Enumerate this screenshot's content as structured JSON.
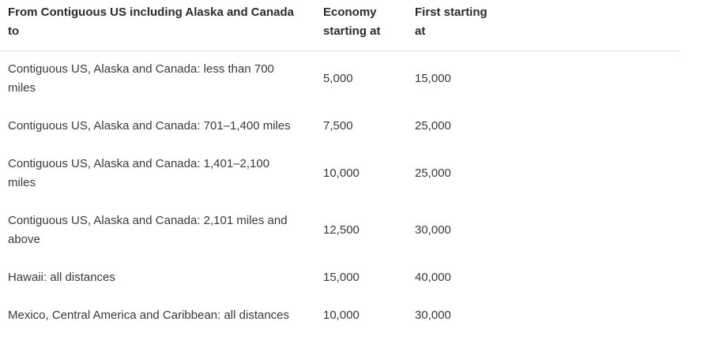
{
  "table": {
    "headers": [
      "From Contiguous US including Alaska and Canada to",
      "Economy starting at",
      "First starting at"
    ],
    "rows": [
      [
        "Contiguous US, Alaska and Canada: less than 700 miles",
        "5,000",
        "15,000"
      ],
      [
        "Contiguous US, Alaska and Canada: 701–1,400 miles",
        "7,500",
        "25,000"
      ],
      [
        "Contiguous US, Alaska and Canada: 1,401–2,100 miles",
        "10,000",
        "25,000"
      ],
      [
        "Contiguous US, Alaska and Canada: 2,101 miles and above",
        "12,500",
        "30,000"
      ],
      [
        "Hawaii: all distances",
        "15,000",
        "40,000"
      ],
      [
        "Mexico, Central America and Caribbean: all distances",
        "10,000",
        "30,000"
      ]
    ]
  }
}
